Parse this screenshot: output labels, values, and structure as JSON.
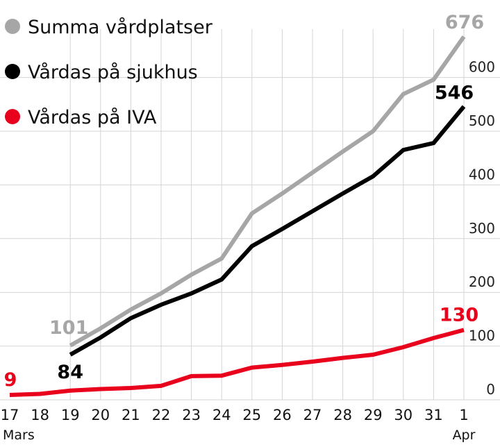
{
  "chart_data": {
    "type": "line",
    "categories": [
      "17",
      "18",
      "19",
      "20",
      "21",
      "22",
      "23",
      "24",
      "25",
      "26",
      "27",
      "28",
      "29",
      "30",
      "31",
      "1"
    ],
    "x_sublabels": {
      "first": "Mars",
      "last": "Apr"
    },
    "ylim": [
      0,
      700
    ],
    "yticks": [
      0,
      100,
      200,
      300,
      400,
      500,
      600
    ],
    "grid": true,
    "legend_position": "top-left",
    "series": [
      {
        "name": "Summa vårdplatser",
        "color": "#a6a6a6",
        "values": [
          null,
          null,
          101,
          133,
          168,
          198,
          233,
          263,
          347,
          384,
          423,
          462,
          500,
          569,
          596,
          676
        ],
        "start_label": "101",
        "end_label": "676"
      },
      {
        "name": "Vårdas på sjukhus",
        "color": "#000000",
        "values": [
          null,
          null,
          84,
          116,
          152,
          177,
          198,
          224,
          286,
          318,
          351,
          384,
          416,
          465,
          478,
          546
        ],
        "start_label": "84",
        "end_label": "546"
      },
      {
        "name": "Vårdas på IVA",
        "color": "#e8001c",
        "values": [
          9,
          11,
          17,
          20,
          22,
          26,
          44,
          45,
          60,
          65,
          71,
          78,
          84,
          98,
          115,
          130
        ],
        "start_label": "9",
        "end_label": "130"
      }
    ]
  }
}
